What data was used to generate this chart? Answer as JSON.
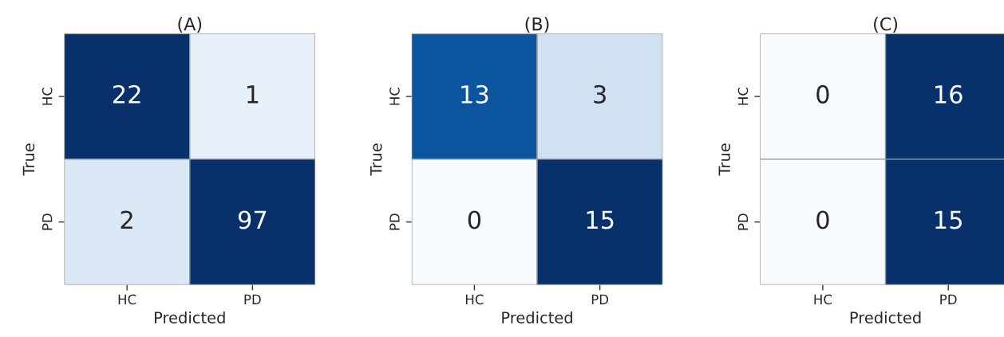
{
  "chart_data": [
    {
      "type": "heatmap",
      "title": "(A)",
      "xlabel": "Predicted",
      "ylabel": "True",
      "categories": [
        "HC",
        "PD"
      ],
      "y_categories": [
        "HC",
        "PD"
      ],
      "cells": [
        [
          22,
          1
        ],
        [
          2,
          97
        ]
      ],
      "data_labels": true,
      "colors": [
        [
          "#08306b",
          "#e8f1fa"
        ],
        [
          "#dbe9f6",
          "#08306b"
        ]
      ]
    },
    {
      "type": "heatmap",
      "title": "(B)",
      "xlabel": "Predicted",
      "ylabel": "True",
      "categories": [
        "HC",
        "PD"
      ],
      "y_categories": [
        "HC",
        "PD"
      ],
      "cells": [
        [
          13,
          3
        ],
        [
          0,
          15
        ]
      ],
      "data_labels": true,
      "colors": [
        [
          "#0b559f",
          "#d0e1f2"
        ],
        [
          "#f7fbff",
          "#08306b"
        ]
      ]
    },
    {
      "type": "heatmap",
      "title": "(C)",
      "xlabel": "Predicted",
      "ylabel": "True",
      "categories": [
        "HC",
        "PD"
      ],
      "y_categories": [
        "HC",
        "PD"
      ],
      "cells": [
        [
          0,
          16
        ],
        [
          0,
          15
        ]
      ],
      "data_labels": true,
      "colors": [
        [
          "#f7fbff",
          "#08306b"
        ],
        [
          "#f7fbff",
          "#08306b"
        ]
      ]
    }
  ]
}
